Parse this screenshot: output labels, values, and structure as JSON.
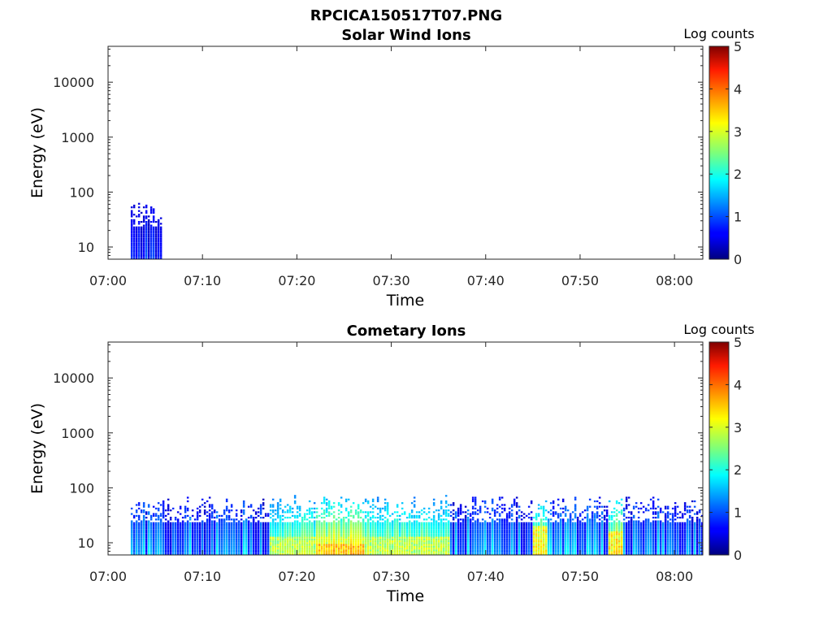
{
  "figure_title": "RPCICA150517T07.PNG",
  "chart_data": [
    {
      "type": "heatmap",
      "title": "Solar Wind Ions",
      "xlabel": "Time",
      "ylabel": "Energy (eV)",
      "x_ticks": [
        "07:00",
        "07:10",
        "07:20",
        "07:30",
        "07:40",
        "07:50",
        "08:00"
      ],
      "x_range": [
        "07:00",
        "08:03"
      ],
      "y_scale": "log",
      "y_ticks": [
        "10",
        "100",
        "1000",
        "10000"
      ],
      "y_range": [
        6,
        45000
      ],
      "colorbar": {
        "label": "Log counts",
        "ticks": [
          "0",
          "1",
          "2",
          "3",
          "4",
          "5"
        ],
        "range": [
          0,
          5
        ]
      },
      "activity": [
        {
          "start_min": 2.4,
          "end_min": 5.6,
          "energy_max_ev": 80,
          "level": 0.9
        }
      ]
    },
    {
      "type": "heatmap",
      "title": "Cometary Ions",
      "xlabel": "Time",
      "ylabel": "Energy (eV)",
      "x_ticks": [
        "07:00",
        "07:10",
        "07:20",
        "07:30",
        "07:40",
        "07:50",
        "08:00"
      ],
      "x_range": [
        "07:00",
        "08:03"
      ],
      "y_scale": "log",
      "y_ticks": [
        "10",
        "100",
        "1000",
        "10000"
      ],
      "y_range": [
        6,
        45000
      ],
      "colorbar": {
        "label": "Log counts",
        "ticks": [
          "0",
          "1",
          "2",
          "3",
          "4",
          "5"
        ],
        "range": [
          0,
          5
        ]
      },
      "activity": [
        {
          "start_min": 2.4,
          "end_min": 63.0,
          "energy_max_ev": 80,
          "level": 1.6
        },
        {
          "start_min": 17.0,
          "end_min": 36.0,
          "energy_max_ev": 12,
          "level": 2.8
        },
        {
          "start_min": 22.0,
          "end_min": 27.0,
          "energy_max_ev": 9,
          "level": 3.4
        },
        {
          "start_min": 45.0,
          "end_min": 46.5,
          "energy_max_ev": 20,
          "level": 3.1
        },
        {
          "start_min": 53.0,
          "end_min": 54.5,
          "energy_max_ev": 15,
          "level": 3.2
        }
      ]
    }
  ]
}
